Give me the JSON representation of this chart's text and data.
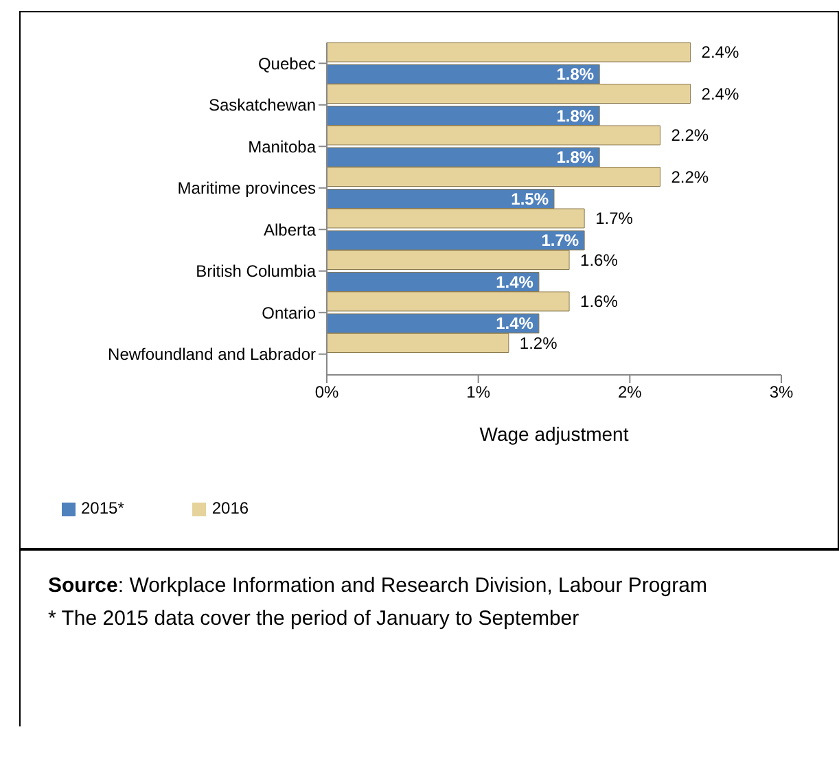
{
  "chart_data": {
    "type": "bar",
    "orientation": "horizontal",
    "xlabel": "Wage adjustment",
    "categories": [
      "Quebec",
      "Saskatchewan",
      "Manitoba",
      "Maritime provinces",
      "Alberta",
      "British Columbia",
      "Ontario",
      "Newfoundland and Labrador"
    ],
    "series": [
      {
        "name": "2016",
        "color": "#e6d39c",
        "values": [
          2.4,
          2.4,
          2.2,
          2.2,
          1.7,
          1.6,
          1.6,
          1.2
        ],
        "value_labels": [
          "2.4%",
          "2.4%",
          "2.2%",
          "2.2%",
          "1.7%",
          "1.6%",
          "1.6%",
          "1.2%"
        ]
      },
      {
        "name": "2015*",
        "color": "#4f81bd",
        "values": [
          1.8,
          1.8,
          1.8,
          1.5,
          1.7,
          1.4,
          1.4,
          null
        ],
        "value_labels": [
          "1.8%",
          "1.8%",
          "1.8%",
          "1.5%",
          "1.7%",
          "1.4%",
          "1.4%",
          null
        ]
      }
    ],
    "xlim": [
      0,
      3
    ],
    "xticks": [
      {
        "value": 0,
        "label": "0%"
      },
      {
        "value": 1,
        "label": "1%"
      },
      {
        "value": 2,
        "label": "2%"
      },
      {
        "value": 3,
        "label": "3%"
      }
    ],
    "grid": false,
    "legend": "bottom left",
    "annotations": [
      "Source: Workplace Information and Research Division, Labour Program",
      "* The 2015 data cover the period of January to September"
    ]
  }
}
